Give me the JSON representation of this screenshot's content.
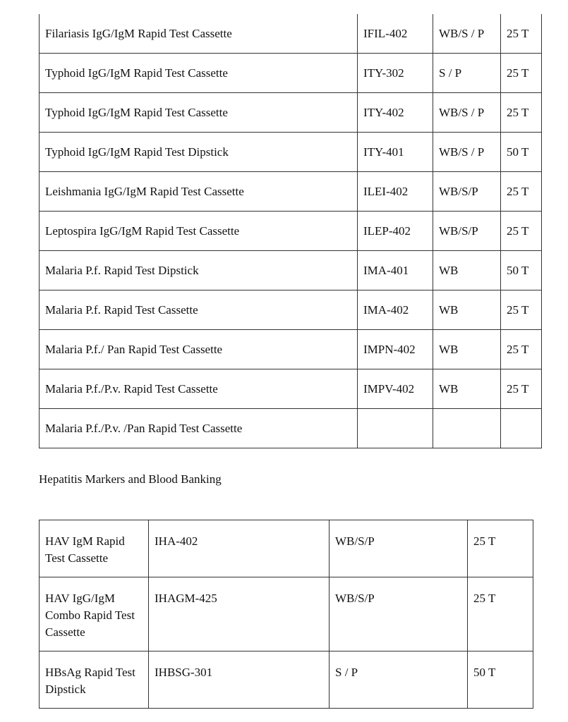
{
  "table1": {
    "rows": [
      [
        "Filariasis IgG/IgM Rapid Test Cassette",
        "IFIL-402",
        "WB/S / P",
        "25 T"
      ],
      [
        "Typhoid IgG/IgM Rapid Test Cassette",
        "ITY-302",
        "S / P",
        "25 T"
      ],
      [
        "Typhoid IgG/IgM Rapid Test Cassette",
        "ITY-402",
        "WB/S / P",
        "25 T"
      ],
      [
        "Typhoid IgG/IgM Rapid Test Dipstick",
        "ITY-401",
        "WB/S / P",
        "50 T"
      ],
      [
        "Leishmania IgG/IgM Rapid Test Cassette",
        "ILEI-402",
        "WB/S/P",
        "25 T"
      ],
      [
        "Leptospira IgG/IgM Rapid Test Cassette",
        "ILEP-402",
        "WB/S/P",
        "25 T"
      ],
      [
        "Malaria P.f. Rapid Test Dipstick",
        "IMA-401",
        "WB",
        "50 T"
      ],
      [
        "Malaria P.f. Rapid Test Cassette",
        "IMA-402",
        "WB",
        "25 T"
      ],
      [
        "Malaria P.f./ Pan Rapid Test Cassette",
        "IMPN-402",
        "WB",
        "25 T"
      ],
      [
        "Malaria P.f./P.v. Rapid Test Cassette",
        "IMPV-402",
        "WB",
        "25 T"
      ],
      [
        "Malaria P.f./P.v. /Pan Rapid Test Cassette",
        "",
        "",
        ""
      ]
    ]
  },
  "section_heading": "Hepatitis Markers and Blood Banking",
  "table2": {
    "rows": [
      [
        "HAV IgM Rapid Test Cassette",
        "IHA-402",
        "WB/S/P",
        "25 T"
      ],
      [
        "HAV IgG/IgM Combo Rapid Test Cassette",
        "IHAGM-425",
        "WB/S/P",
        "25 T"
      ],
      [
        "HBsAg Rapid Test Dipstick",
        "IHBSG-301",
        "S / P",
        "50 T"
      ]
    ]
  }
}
